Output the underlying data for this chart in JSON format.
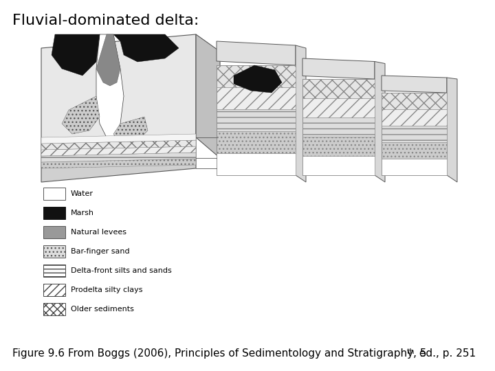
{
  "title": "Fluvial-dominated delta:",
  "title_fontsize": 16,
  "caption_main": "Figure 9.6 From Boggs (2006), Principles of Sedimentology and Stratigraphy, 5",
  "caption_sup": "th",
  "caption_suf": " ed., p. 251",
  "caption_fontsize": 11,
  "background_color": "#ffffff",
  "legend": [
    {
      "label": "Water",
      "fc": "#ffffff",
      "ec": "#555555",
      "hatch": ""
    },
    {
      "label": "Marsh",
      "fc": "#111111",
      "ec": "#111111",
      "hatch": ""
    },
    {
      "label": "Natural levees",
      "fc": "#999999",
      "ec": "#555555",
      "hatch": ""
    },
    {
      "label": "Bar-finger sand",
      "fc": "#dddddd",
      "ec": "#555555",
      "hatch": "..."
    },
    {
      "label": "Delta-front silts and sands",
      "fc": "#ffffff",
      "ec": "#444444",
      "hatch": "---"
    },
    {
      "label": "Prodelta silty clays",
      "fc": "#ffffff",
      "ec": "#444444",
      "hatch": "///"
    },
    {
      "label": "Older sediments",
      "fc": "#ffffff",
      "ec": "#444444",
      "hatch": "xxx"
    }
  ]
}
